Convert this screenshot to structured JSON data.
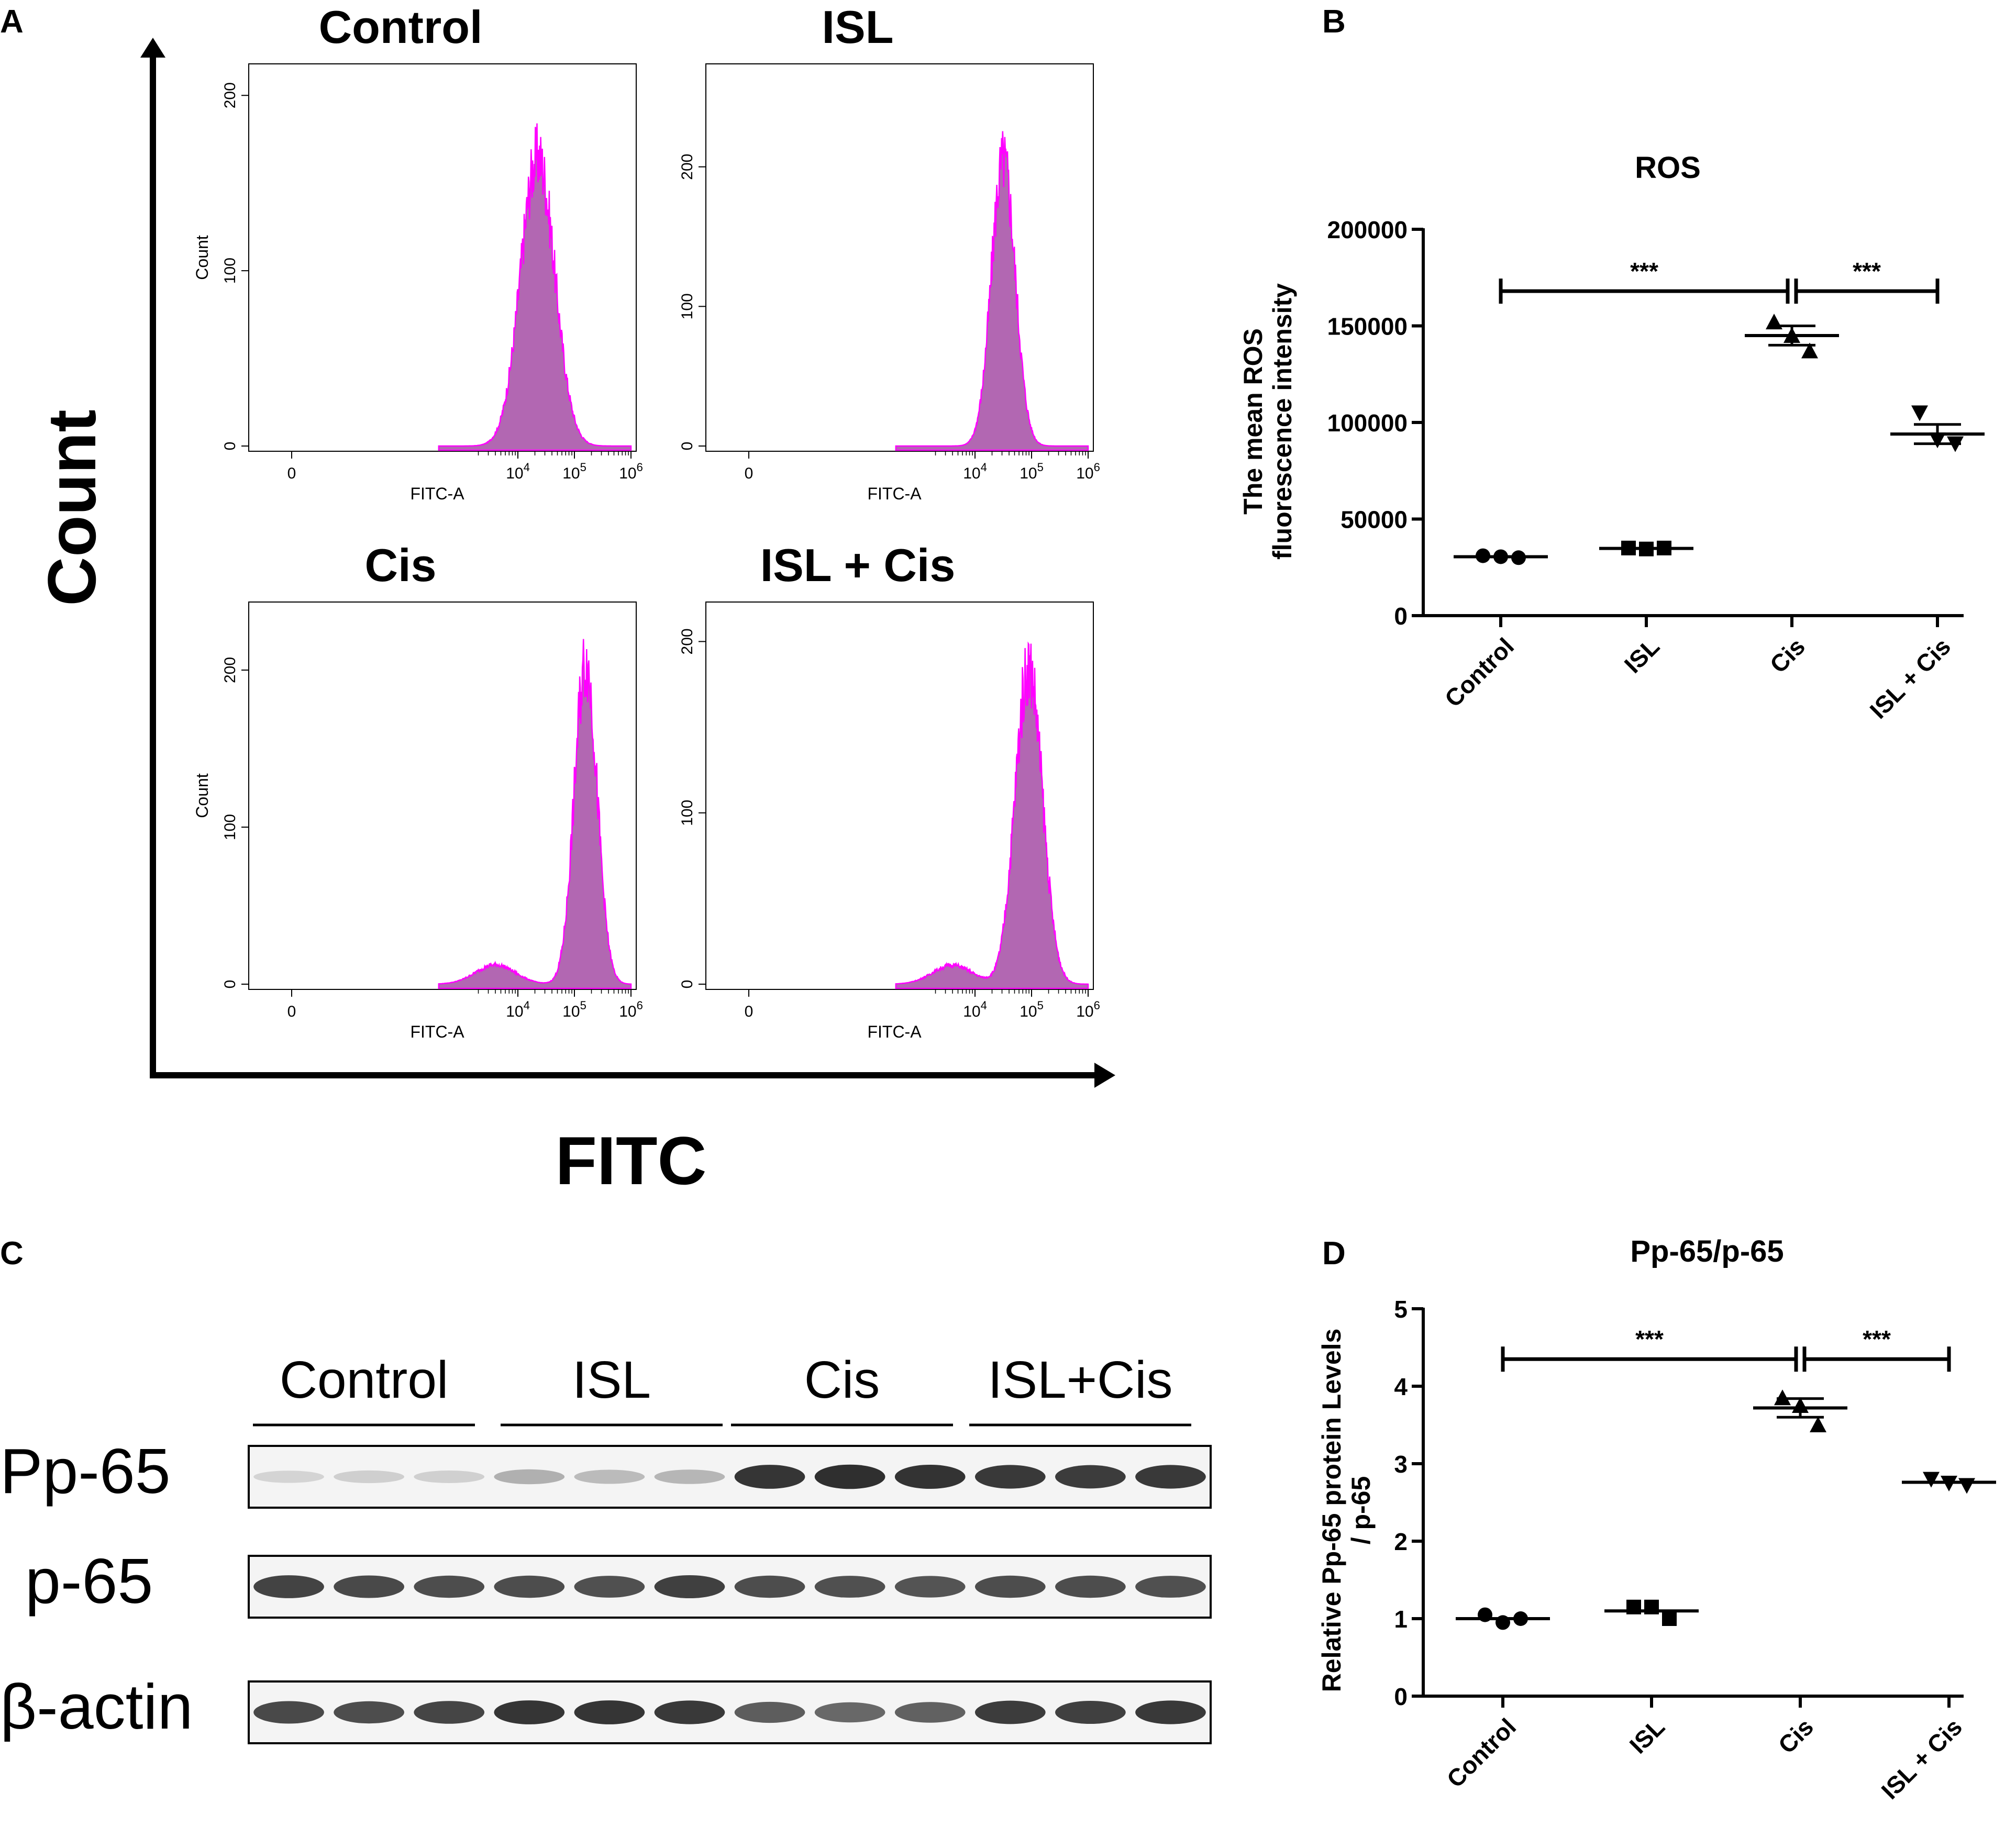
{
  "panels": {
    "A": {
      "letter": "A",
      "outer_x_label": "FITC",
      "outer_y_label": "Count",
      "histograms": [
        {
          "title": "Control",
          "y_label": "Count",
          "x_label": "FITC-A",
          "y_ticks": [
            "0",
            "100",
            "200"
          ],
          "ymax": 215,
          "peak_log": 4.35,
          "sigma": 0.3,
          "peak_count": 165,
          "shoulder": null
        },
        {
          "title": "ISL",
          "y_label": "",
          "x_label": "FITC-A",
          "y_ticks": [
            "0",
            "100",
            "200"
          ],
          "ymax": 270,
          "peak_log": 4.5,
          "sigma": 0.21,
          "peak_count": 205,
          "shoulder": null
        },
        {
          "title": "Cis",
          "y_label": "Count",
          "x_label": "FITC-A",
          "y_ticks": [
            "0",
            "100",
            "200"
          ],
          "ymax": 240,
          "peak_log": 5.2,
          "sigma": 0.2,
          "peak_count": 205,
          "shoulder": 0.12
        },
        {
          "title": "ISL + Cis",
          "y_label": "",
          "x_label": "FITC-A",
          "y_ticks": [
            "0",
            "100",
            "200"
          ],
          "ymax": 220,
          "peak_log": 4.95,
          "sigma": 0.24,
          "peak_count": 185,
          "shoulder": 0.12
        }
      ],
      "x_ticks": [
        {
          "label": "0",
          "pos": 0
        },
        {
          "label": "10",
          "sup": "4",
          "pos": 4
        },
        {
          "label": "10",
          "sup": "5",
          "pos": 5
        },
        {
          "label": "10",
          "sup": "6",
          "pos": 6
        }
      ],
      "colors": {
        "fill": "#b267b2",
        "stroke": "#ff00ff"
      }
    },
    "B": {
      "letter": "B"
    },
    "C": {
      "letter": "C",
      "group_labels": [
        "Control",
        "ISL",
        "Cis",
        "ISL+Cis"
      ],
      "rows": [
        {
          "label": "Pp-65",
          "intensities": [
            0.12,
            0.15,
            0.14,
            0.3,
            0.25,
            0.27,
            0.92,
            0.95,
            0.93,
            0.9,
            0.88,
            0.9
          ]
        },
        {
          "label": "p-65",
          "intensities": [
            0.85,
            0.82,
            0.8,
            0.8,
            0.78,
            0.86,
            0.8,
            0.78,
            0.76,
            0.8,
            0.8,
            0.78
          ]
        },
        {
          "label": "β-actin",
          "intensities": [
            0.82,
            0.8,
            0.84,
            0.92,
            0.92,
            0.9,
            0.72,
            0.66,
            0.7,
            0.88,
            0.86,
            0.9
          ]
        }
      ]
    },
    "D": {
      "letter": "D"
    }
  },
  "chart_data": [
    {
      "type": "scatter",
      "panel": "B",
      "title": "ROS",
      "ylabel_lines": [
        "The mean ROS",
        "fluorescence intensity"
      ],
      "categories": [
        "Control",
        "ISL",
        "Cis",
        "ISL + Cis"
      ],
      "ylim": [
        0,
        200000
      ],
      "y_ticks": [
        {
          "value": 0,
          "label": "0"
        },
        {
          "value": 50000,
          "label": "50000"
        },
        {
          "value": 100000,
          "label": "100000"
        },
        {
          "value": 150000,
          "label": "150000"
        },
        {
          "value": 200000,
          "label": "200000"
        }
      ],
      "points": [
        [
          31000,
          30500,
          30000
        ],
        [
          35000,
          34500,
          35000
        ],
        [
          152000,
          145000,
          137000
        ],
        [
          105000,
          91000,
          89000
        ]
      ],
      "means": [
        30500,
        34800,
        145000,
        94000
      ],
      "sems": [
        0,
        0,
        5000,
        5000
      ],
      "markers": [
        "circle",
        "square",
        "triangle-up",
        "triangle-down"
      ],
      "significance": [
        {
          "from": 0,
          "to": 2,
          "y": 168000,
          "label": "***"
        },
        {
          "from": 2,
          "to": 3,
          "y": 168000,
          "label": "***"
        }
      ]
    },
    {
      "type": "scatter",
      "panel": "D",
      "title": "Pp-65/p-65",
      "ylabel_lines": [
        "Relative Pp-65  protein Levels",
        "/ p-65"
      ],
      "categories": [
        "Control",
        "ISL",
        "Cis",
        "ISL + Cis"
      ],
      "ylim": [
        0,
        5
      ],
      "y_ticks": [
        {
          "value": 0,
          "label": "0"
        },
        {
          "value": 1,
          "label": "1"
        },
        {
          "value": 2,
          "label": "2"
        },
        {
          "value": 3,
          "label": "3"
        },
        {
          "value": 4,
          "label": "4"
        },
        {
          "value": 5,
          "label": "5"
        }
      ],
      "points": [
        [
          1.05,
          0.95,
          1.0
        ],
        [
          1.15,
          1.15,
          1.0
        ],
        [
          3.85,
          3.75,
          3.5
        ],
        [
          2.8,
          2.75,
          2.72
        ]
      ],
      "means": [
        1.0,
        1.1,
        3.72,
        2.76
      ],
      "sems": [
        0,
        0,
        0.12,
        0
      ],
      "markers": [
        "circle",
        "square",
        "triangle-up",
        "triangle-down"
      ],
      "significance": [
        {
          "from": 0,
          "to": 2,
          "y": 4.35,
          "label": "***"
        },
        {
          "from": 2,
          "to": 3,
          "y": 4.35,
          "label": "***"
        }
      ]
    }
  ]
}
